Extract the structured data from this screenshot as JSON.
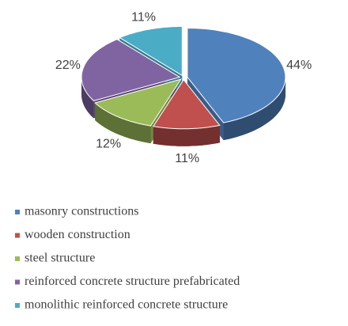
{
  "chart_data": {
    "type": "pie",
    "categories": [
      "masonry constructions",
      "wooden construction",
      "steel structure",
      "reinforced concrete structure prefabricated",
      "monolithic reinforced concrete structure"
    ],
    "values": [
      44,
      11,
      12,
      22,
      11
    ],
    "value_labels": [
      "44%",
      "11%",
      "12%",
      "22%",
      "11%"
    ],
    "colors": [
      "#4f81bd",
      "#c0504d",
      "#9bbb59",
      "#8064a2",
      "#4bacc6"
    ],
    "legend": "bottom"
  }
}
